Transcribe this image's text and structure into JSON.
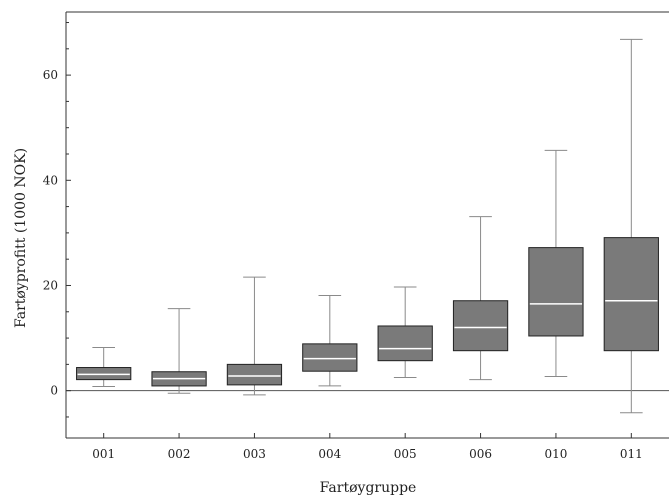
{
  "chart_data": {
    "type": "box",
    "xlabel": "Fartøygruppe",
    "ylabel": "Fartøyprofitt  (1000 NOK)",
    "ylim": [
      -9,
      72
    ],
    "yticks": [
      0,
      20,
      40,
      60
    ],
    "reference_line": 0,
    "grid": false,
    "colors": {
      "box_fill": "#7a7a7a",
      "median": "#ffffff",
      "whisker": "#8a8a8a",
      "axis": "#333333"
    },
    "categories": [
      "001",
      "002",
      "003",
      "004",
      "005",
      "006",
      "010",
      "011"
    ],
    "boxes": [
      {
        "category": "001",
        "min": 0.8,
        "q1": 2.1,
        "median": 3.1,
        "q3": 4.4,
        "max": 8.2
      },
      {
        "category": "002",
        "min": -0.5,
        "q1": 0.9,
        "median": 2.3,
        "q3": 3.6,
        "max": 15.6
      },
      {
        "category": "003",
        "min": -0.8,
        "q1": 1.1,
        "median": 2.8,
        "q3": 5.0,
        "max": 21.6
      },
      {
        "category": "004",
        "min": 0.9,
        "q1": 3.7,
        "median": 6.1,
        "q3": 8.9,
        "max": 18.1
      },
      {
        "category": "005",
        "min": 2.5,
        "q1": 5.7,
        "median": 8.0,
        "q3": 12.3,
        "max": 19.7
      },
      {
        "category": "006",
        "min": 2.1,
        "q1": 7.6,
        "median": 12.0,
        "q3": 17.1,
        "max": 33.1
      },
      {
        "category": "010",
        "min": 2.7,
        "q1": 10.4,
        "median": 16.5,
        "q3": 27.2,
        "max": 45.7
      },
      {
        "category": "011",
        "min": -4.2,
        "q1": 7.6,
        "median": 17.1,
        "q3": 29.1,
        "max": 66.8
      }
    ]
  }
}
